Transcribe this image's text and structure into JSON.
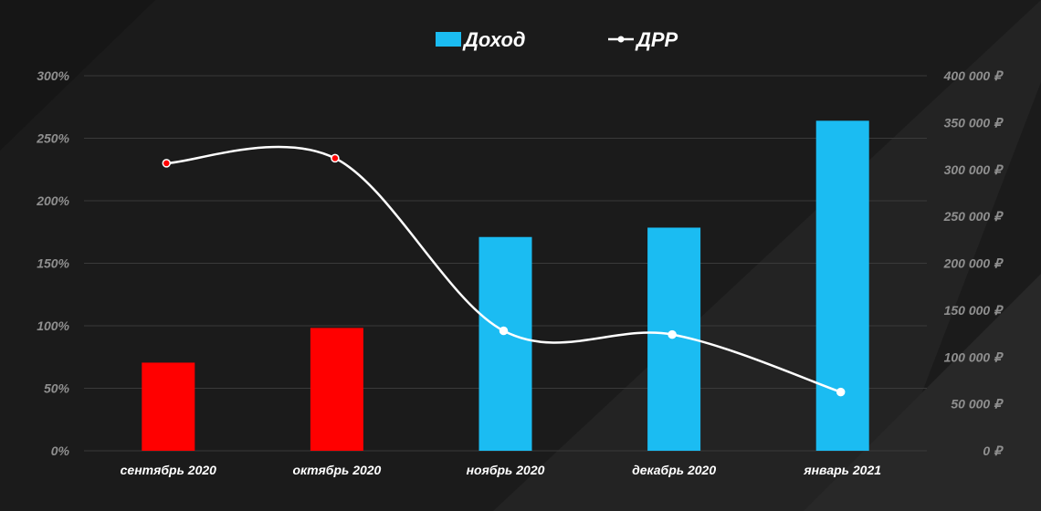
{
  "chart_data": {
    "type": "bar",
    "categories": [
      "сентябрь 2020",
      "октябрь 2020",
      "ноябрь 2020",
      "декабрь 2020",
      "январь 2021"
    ],
    "series": [
      {
        "name": "Доход",
        "type": "bar",
        "axis": "right",
        "values": [
          94000,
          131000,
          228000,
          238000,
          352000
        ],
        "colors": [
          "#ff0000",
          "#ff0000",
          "#1bbcf2",
          "#1bbcf2",
          "#1bbcf2"
        ]
      },
      {
        "name": "ДРР",
        "type": "line",
        "axis": "left",
        "values": [
          230,
          234,
          96,
          93,
          47
        ],
        "point_fill": [
          "#ff0000",
          "#ff0000",
          "#ffffff",
          "#ffffff",
          "#ffffff"
        ]
      }
    ],
    "y_left": {
      "ticks": [
        0,
        50,
        100,
        150,
        200,
        250,
        300
      ],
      "tick_labels": [
        "0%",
        "50%",
        "100%",
        "150%",
        "200%",
        "250%",
        "300%"
      ],
      "range": [
        0,
        300
      ]
    },
    "y_right": {
      "ticks": [
        0,
        50000,
        100000,
        150000,
        200000,
        250000,
        300000,
        350000,
        400000
      ],
      "tick_labels": [
        "0 ₽",
        "50 000 ₽",
        "100 000 ₽",
        "150 000 ₽",
        "200 000 ₽",
        "250 000 ₽",
        "300 000 ₽",
        "350 000 ₽",
        "400 000 ₽"
      ],
      "range": [
        0,
        400000
      ]
    },
    "grid": true,
    "legend_position": "top-center",
    "colors": {
      "background": "#1b1b1b",
      "bar_primary": "#1bbcf2",
      "bar_highlight": "#ff0000",
      "line": "#ffffff",
      "grid": "#3a3a3a",
      "axis_text": "#8f8f8f"
    }
  }
}
